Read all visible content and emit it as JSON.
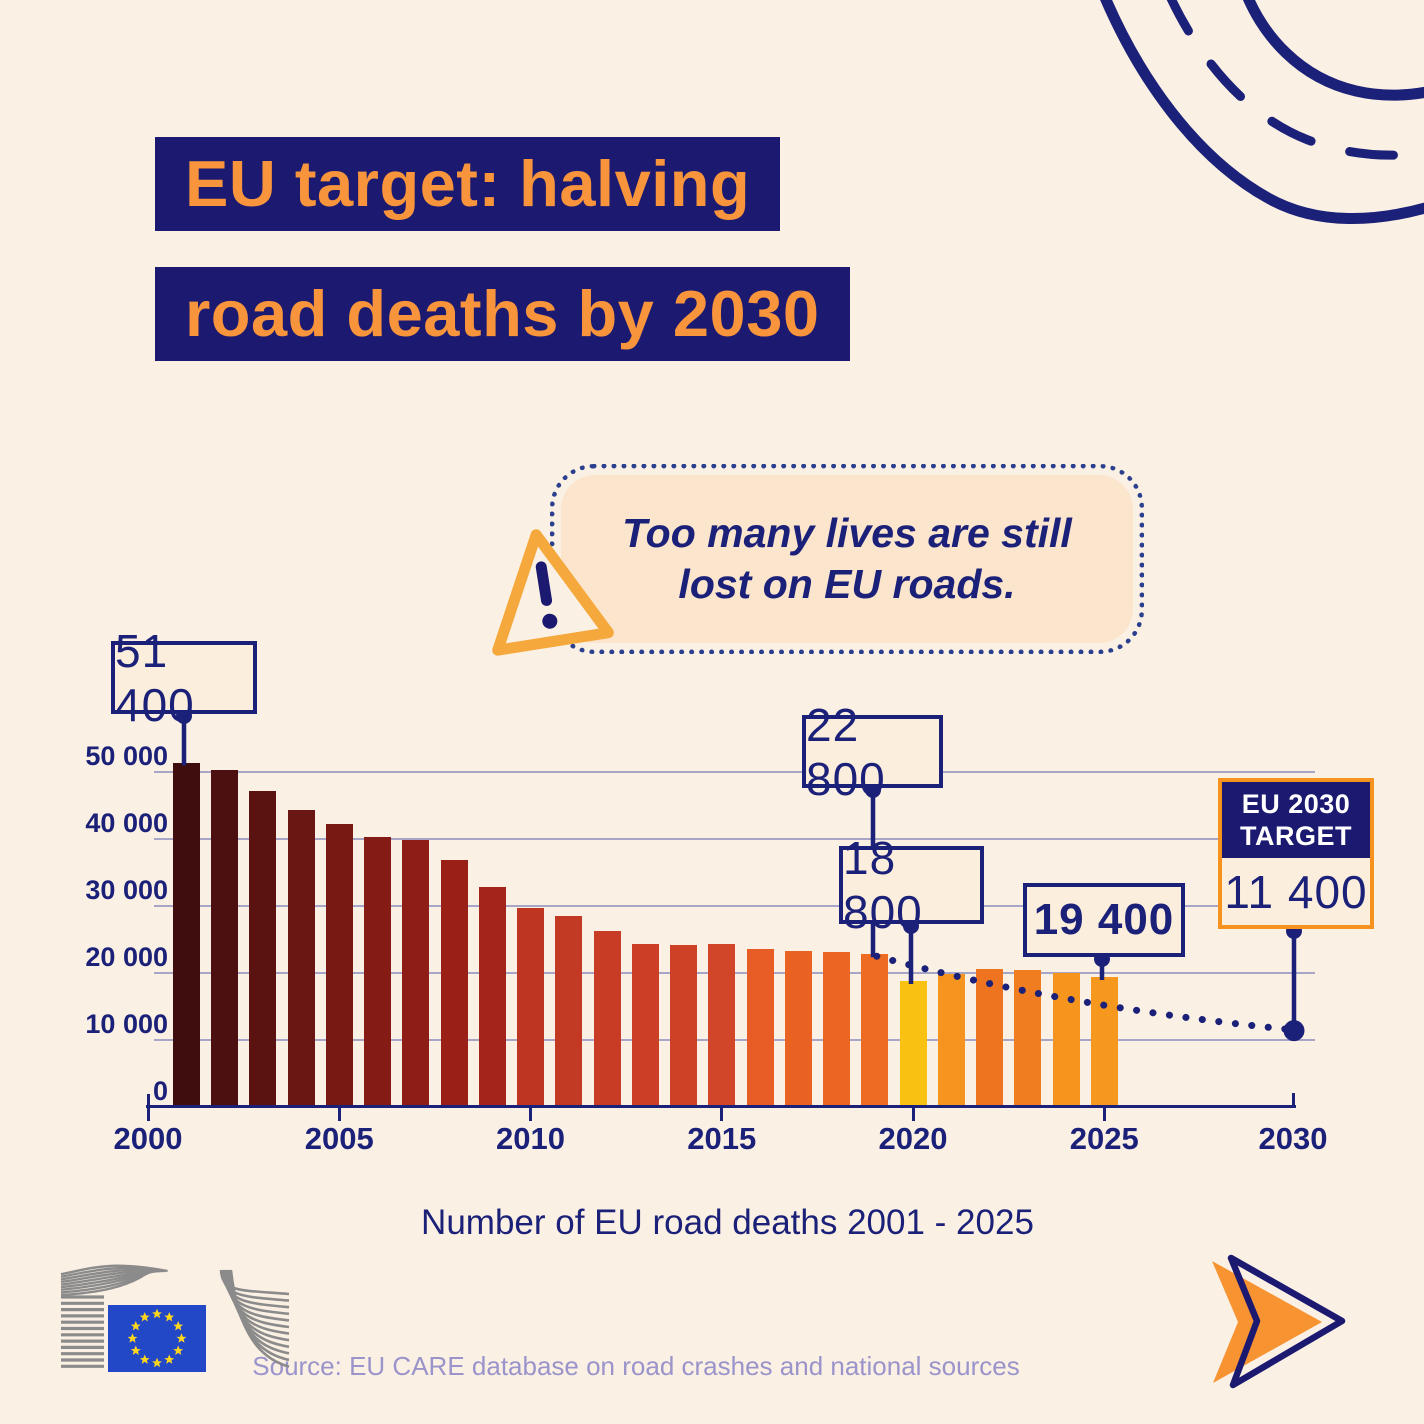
{
  "title": {
    "line1": "EU target: halving",
    "line2": "road deaths by 2030"
  },
  "callout": {
    "line1": "Too many lives are still",
    "line2": "lost on EU roads.",
    "icon": "warning-triangle-icon"
  },
  "chart_data": {
    "type": "bar",
    "title": "Number of EU road deaths 2001 - 2025",
    "x": [
      2001,
      2002,
      2003,
      2004,
      2005,
      2006,
      2007,
      2008,
      2009,
      2010,
      2011,
      2012,
      2013,
      2014,
      2015,
      2016,
      2017,
      2018,
      2019,
      2020,
      2021,
      2022,
      2023,
      2024,
      2025
    ],
    "values": [
      51400,
      50300,
      47200,
      44300,
      42300,
      40300,
      39900,
      36900,
      32900,
      29700,
      28500,
      26200,
      24300,
      24200,
      24400,
      23600,
      23300,
      23100,
      22800,
      18800,
      19800,
      20600,
      20400,
      20000,
      19400
    ],
    "bar_colors": [
      "#3F0D0E",
      "#4B100F",
      "#5A1310",
      "#6A1612",
      "#781913",
      "#841B14",
      "#8D1D15",
      "#991F17",
      "#A4231B",
      "#BE3522",
      "#C33A24",
      "#C83C25",
      "#CC3E26",
      "#CE4126",
      "#D14628",
      "#E85D25",
      "#EA6124",
      "#EC6523",
      "#EE6B22",
      "#F9C112",
      "#F5941E",
      "#EF7420",
      "#F07D1F",
      "#F6951E",
      "#F6981E"
    ],
    "ylim": [
      0,
      52000
    ],
    "grid": true,
    "y_ticks": [
      {
        "value": 0,
        "label": "0"
      },
      {
        "value": 10000,
        "label": "10 000"
      },
      {
        "value": 20000,
        "label": "20 000"
      },
      {
        "value": 30000,
        "label": "30 000"
      },
      {
        "value": 40000,
        "label": "40 000"
      },
      {
        "value": 50000,
        "label": "50 000"
      }
    ],
    "x_ticks": [
      "2000",
      "2005",
      "2010",
      "2015",
      "2020",
      "2025",
      "2030"
    ],
    "x_tick_years": [
      2000,
      2005,
      2010,
      2015,
      2020,
      2025,
      2030
    ],
    "annotations": [
      {
        "id": "y2001",
        "year": 2001,
        "label": "51 400",
        "value": 51400
      },
      {
        "id": "y2019",
        "year": 2019,
        "label": "22 800",
        "value": 22800
      },
      {
        "id": "y2020",
        "year": 2020,
        "label": "18 800",
        "value": 18800
      },
      {
        "id": "y2025",
        "year": 2025,
        "label": "19 400",
        "value": 19400,
        "bold": true
      },
      {
        "id": "target2030",
        "year": 2030,
        "label": "11 400",
        "value": 11400,
        "title_line1": "EU 2030",
        "title_line2": "TARGET"
      }
    ],
    "trend_line": {
      "style": "dotted",
      "points": [
        {
          "year": 2019,
          "value": 22800
        },
        {
          "year": 2030,
          "value": 11400
        }
      ]
    }
  },
  "source": {
    "text": "Source: EU CARE database on road crashes and national sources"
  },
  "icons": {
    "warning": "warning-triangle-icon",
    "logo": "ec-logo",
    "road": "road-illustration",
    "arrow": "next-arrow-icon"
  },
  "colors": {
    "background": "#FBF0E4",
    "navy": "#1C1A70",
    "text_navy": "#1B2178",
    "title_orange": "#F8943B",
    "target_border_orange": "#F6921E",
    "triangle_orange": "#F5A83C",
    "gold_2020_bar": "#F9C112",
    "box_fill": "#FCEEDC",
    "callout_fill": "#FBE5CD",
    "gridline": "#A8A6C8",
    "source_text": "#9A94CB",
    "logo_gray": "#8B8B8B",
    "flag_blue": "#2348C7",
    "star_yellow": "#FFD61E"
  }
}
